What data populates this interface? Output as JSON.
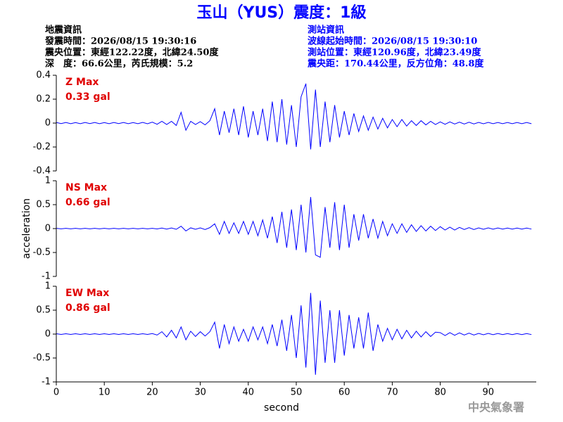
{
  "chart_data": {
    "type": "line",
    "title": "玉山（YUS）震度：1級",
    "info_left": [
      "地震資訊",
      "發震時間：2026/08/15 19:30:16",
      "震央位置：東經122.22度，北緯24.50度",
      "深　度：66.6公里，芮氏規模：5.2"
    ],
    "info_right": [
      "測站資訊",
      "波線起始時間：2026/08/15 19:30:10",
      "測站位置：東經120.96度，北緯23.49度",
      "震央距：170.44公里，反方位角：48.8度"
    ],
    "xlabel": "second",
    "ylabel": "acceleration",
    "source": "中央氣象署",
    "xlim": [
      0,
      100
    ],
    "xticks": [
      0,
      10,
      20,
      30,
      40,
      50,
      60,
      70,
      80,
      90
    ],
    "x": [
      0,
      1,
      2,
      3,
      4,
      5,
      6,
      7,
      8,
      9,
      10,
      11,
      12,
      13,
      14,
      15,
      16,
      17,
      18,
      19,
      20,
      21,
      22,
      23,
      24,
      25,
      26,
      27,
      28,
      29,
      30,
      31,
      32,
      33,
      34,
      35,
      36,
      37,
      38,
      39,
      40,
      41,
      42,
      43,
      44,
      45,
      46,
      47,
      48,
      49,
      50,
      51,
      52,
      53,
      54,
      55,
      56,
      57,
      58,
      59,
      60,
      61,
      62,
      63,
      64,
      65,
      66,
      67,
      68,
      69,
      70,
      71,
      72,
      73,
      74,
      75,
      76,
      77,
      78,
      79,
      80,
      81,
      82,
      83,
      84,
      85,
      86,
      87,
      88,
      89,
      90,
      91,
      92,
      93,
      94,
      95,
      96,
      97,
      98,
      99
    ],
    "series": [
      {
        "name": "Z Max",
        "peak_label": "0.33 gal",
        "color": "#0000ff",
        "ylim": [
          -0.4,
          0.4
        ],
        "yticks": [
          -0.4,
          -0.2,
          0,
          0.2,
          0.4
        ],
        "values": [
          0.005,
          -0.004,
          0.005,
          -0.005,
          0.004,
          -0.005,
          0.005,
          -0.004,
          0.005,
          -0.005,
          0.004,
          -0.005,
          0.005,
          -0.004,
          0.005,
          -0.005,
          0.004,
          -0.005,
          0.006,
          -0.006,
          0.008,
          -0.01,
          0.015,
          -0.012,
          0.015,
          -0.02,
          0.09,
          -0.06,
          0.015,
          -0.012,
          0.012,
          -0.015,
          0.02,
          0.12,
          -0.1,
          0.1,
          -0.08,
          0.12,
          -0.1,
          0.14,
          -0.12,
          0.1,
          -0.1,
          0.12,
          -0.15,
          0.18,
          -0.16,
          0.2,
          -0.18,
          0.15,
          -0.2,
          0.22,
          0.33,
          -0.22,
          0.28,
          -0.2,
          0.18,
          -0.16,
          0.15,
          -0.12,
          0.1,
          -0.1,
          0.08,
          -0.07,
          0.06,
          -0.06,
          0.05,
          -0.05,
          0.04,
          -0.04,
          0.03,
          -0.03,
          0.03,
          -0.025,
          0.02,
          -0.02,
          0.02,
          -0.015,
          0.015,
          -0.012,
          0.01,
          -0.01,
          0.01,
          -0.008,
          0.008,
          -0.008,
          0.007,
          -0.007,
          0.006,
          -0.006,
          0.006,
          -0.005,
          0.005,
          -0.005,
          0.005,
          -0.005,
          0.005,
          -0.005,
          0.005,
          -0.005
        ]
      },
      {
        "name": "NS Max",
        "peak_label": "0.66 gal",
        "color": "#0000ff",
        "ylim": [
          -1,
          1
        ],
        "yticks": [
          -1,
          -0.5,
          0,
          0.5,
          1
        ],
        "values": [
          0.005,
          -0.005,
          0.005,
          -0.005,
          0.005,
          -0.005,
          0.005,
          -0.005,
          0.005,
          -0.005,
          0.005,
          -0.005,
          0.005,
          -0.005,
          0.005,
          -0.005,
          0.005,
          -0.005,
          0.005,
          -0.005,
          0.006,
          -0.008,
          0.01,
          -0.01,
          0.012,
          -0.015,
          0.05,
          -0.05,
          0.015,
          -0.015,
          0.015,
          -0.02,
          0.02,
          0.1,
          -0.12,
          0.15,
          -0.1,
          0.12,
          -0.1,
          0.15,
          -0.12,
          0.15,
          -0.15,
          0.18,
          -0.2,
          0.25,
          -0.3,
          0.35,
          -0.4,
          0.4,
          -0.45,
          0.5,
          -0.5,
          0.66,
          -0.55,
          -0.6,
          0.45,
          -0.4,
          0.55,
          -0.45,
          0.5,
          -0.4,
          0.3,
          -0.25,
          0.3,
          -0.2,
          0.2,
          -0.2,
          0.15,
          -0.15,
          0.1,
          -0.1,
          0.1,
          -0.08,
          0.08,
          -0.06,
          0.06,
          -0.05,
          0.05,
          -0.04,
          0.04,
          -0.03,
          0.03,
          -0.03,
          0.025,
          -0.02,
          0.02,
          -0.02,
          0.015,
          -0.015,
          0.015,
          -0.012,
          0.012,
          -0.01,
          0.01,
          -0.01,
          0.01,
          -0.01,
          0.01,
          -0.01
        ]
      },
      {
        "name": "EW Max",
        "peak_label": "0.86 gal",
        "color": "#0000ff",
        "ylim": [
          -1,
          1
        ],
        "yticks": [
          -1,
          -0.5,
          0,
          0.5,
          1
        ],
        "values": [
          0.008,
          -0.008,
          0.008,
          -0.008,
          0.008,
          -0.008,
          0.008,
          -0.008,
          0.008,
          -0.008,
          0.008,
          -0.008,
          0.008,
          -0.008,
          0.008,
          -0.008,
          0.008,
          -0.008,
          0.008,
          -0.008,
          0.01,
          -0.02,
          0.05,
          -0.06,
          0.08,
          -0.08,
          0.15,
          -0.12,
          0.06,
          -0.05,
          0.05,
          -0.04,
          0.05,
          0.25,
          -0.3,
          0.2,
          -0.2,
          0.15,
          -0.15,
          0.1,
          -0.15,
          0.15,
          -0.12,
          0.15,
          -0.2,
          0.2,
          -0.25,
          0.3,
          -0.35,
          0.4,
          -0.5,
          0.6,
          -0.7,
          0.86,
          -0.85,
          0.7,
          -0.6,
          0.5,
          -0.6,
          0.5,
          -0.45,
          0.4,
          -0.3,
          0.35,
          -0.3,
          0.45,
          -0.35,
          0.2,
          -0.15,
          0.12,
          -0.12,
          0.1,
          -0.1,
          0.08,
          -0.08,
          0.06,
          -0.06,
          0.05,
          -0.05,
          0.04,
          0.03,
          -0.03,
          0.03,
          -0.025,
          0.025,
          -0.02,
          0.02,
          -0.02,
          0.015,
          -0.015,
          0.015,
          -0.012,
          0.012,
          -0.01,
          0.01,
          -0.01,
          0.01,
          -0.01,
          0.01,
          -0.01
        ]
      }
    ]
  }
}
